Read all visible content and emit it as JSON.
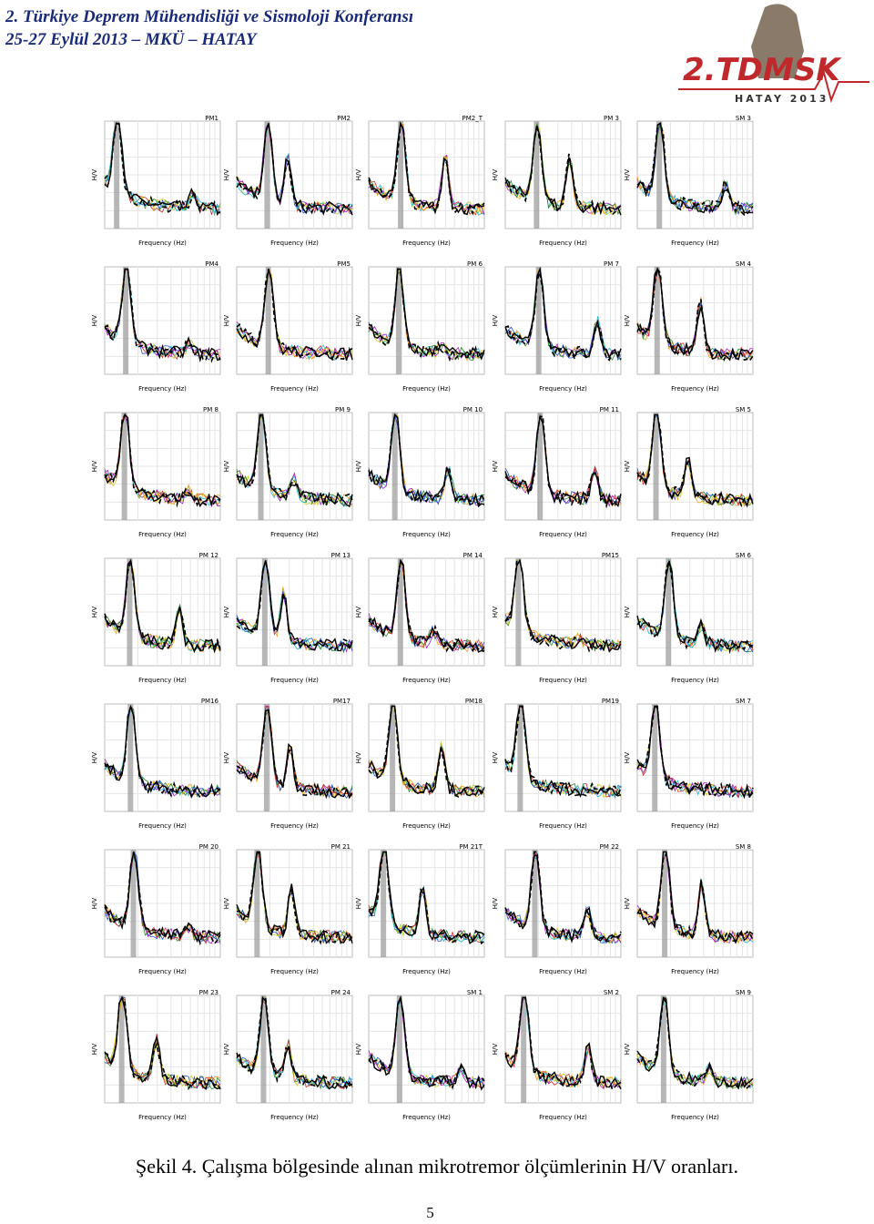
{
  "header": {
    "title": "2. Türkiye Deprem Mühendisliği ve Sismoloji Konferansı",
    "subtitle": "25-27 Eylül 2013 – MKÜ – HATAY"
  },
  "logo": {
    "name": "2.TDMSK",
    "place": "HATAY 2013"
  },
  "axes": {
    "y_label": "H/V",
    "x_label": "Frequency (Hz)"
  },
  "panels": [
    [
      "PM1",
      "PM2",
      "PM2_T",
      "PM 3",
      "SM 3"
    ],
    [
      "PM4",
      "PM5",
      "PM 6",
      "PM 7",
      "SM 4"
    ],
    [
      "PM 8",
      "PM 9",
      "PM 10",
      "PM 11",
      "SM 5"
    ],
    [
      "PM 12",
      "PM 13",
      "PM 14",
      "PM15",
      "SM 6"
    ],
    [
      "PM16",
      "PM17",
      "PM18",
      "PM19",
      "SM 7"
    ],
    [
      "PM 20",
      "PM 21",
      "PM 21T",
      "PM 22",
      "SM 8"
    ],
    [
      "PM 23",
      "PM 24",
      "SM 1",
      "SM 2",
      "SM 9"
    ]
  ],
  "caption": "Şekil 4. Çalışma bölgesinde alınan mikrotremor ölçümlerinin H/V oranları.",
  "page_number": "5"
}
